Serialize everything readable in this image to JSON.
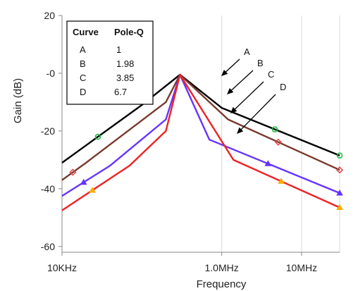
{
  "chart_data": {
    "type": "line",
    "xlabel": "Frequency",
    "ylabel": "Gain (dB)",
    "x_scale": "log",
    "xlim": [
      "10KHz",
      "30MHz"
    ],
    "ylim": [
      -62,
      20
    ],
    "x_tick_labels": [
      "10KHz",
      "1.0MHz",
      "10MHz"
    ],
    "y_tick_labels": [
      "20",
      "-0",
      "-20",
      "-40",
      "-60"
    ],
    "y_tick_values": [
      20,
      0,
      -20,
      -40,
      -60
    ],
    "grid": "vertical only",
    "legend": {
      "position": "top-left",
      "header": [
        "Curve",
        "Pole-Q"
      ],
      "rows": [
        {
          "curve": "A",
          "q": "1"
        },
        {
          "curve": "B",
          "q": "1.98"
        },
        {
          "curve": "C",
          "q": "3.85"
        },
        {
          "curve": "D",
          "q": "6.7"
        }
      ]
    },
    "series": [
      {
        "name": "A",
        "color": "#000000",
        "marker_color": "#22bb44",
        "x": [
          "10KHz",
          "100KHz",
          "300KHz",
          "1.0MHz",
          "30MHz"
        ],
        "y": [
          -31,
          -11,
          -0.5,
          -12,
          -28.5
        ]
      },
      {
        "name": "B",
        "color": "#7a3a2e",
        "marker_color": "#dd4444",
        "x": [
          "10KHz",
          "20KHz",
          "200KHz",
          "300KHz",
          "1.2MHz",
          "30MHz"
        ],
        "y": [
          -37,
          -31,
          -10,
          -0.5,
          -16,
          -33.5
        ]
      },
      {
        "name": "C",
        "color": "#6633ff",
        "marker_color": "#6633ff",
        "x": [
          "10KHz",
          "40KHz",
          "200KHz",
          "300KHz",
          "700KHz",
          "30MHz"
        ],
        "y": [
          -42.5,
          -32,
          -16,
          -0.5,
          -23,
          -41.5
        ]
      },
      {
        "name": "D",
        "color": "#ee2222",
        "marker_color": "#ffaa00",
        "x": [
          "10KHz",
          "70KHz",
          "200KHz",
          "300KHz",
          "1.4MHz",
          "30MHz"
        ],
        "y": [
          -47.5,
          -32,
          -20,
          -0.5,
          -30,
          -46.5
        ]
      }
    ],
    "annotations": [
      "A",
      "B",
      "C",
      "D"
    ]
  }
}
